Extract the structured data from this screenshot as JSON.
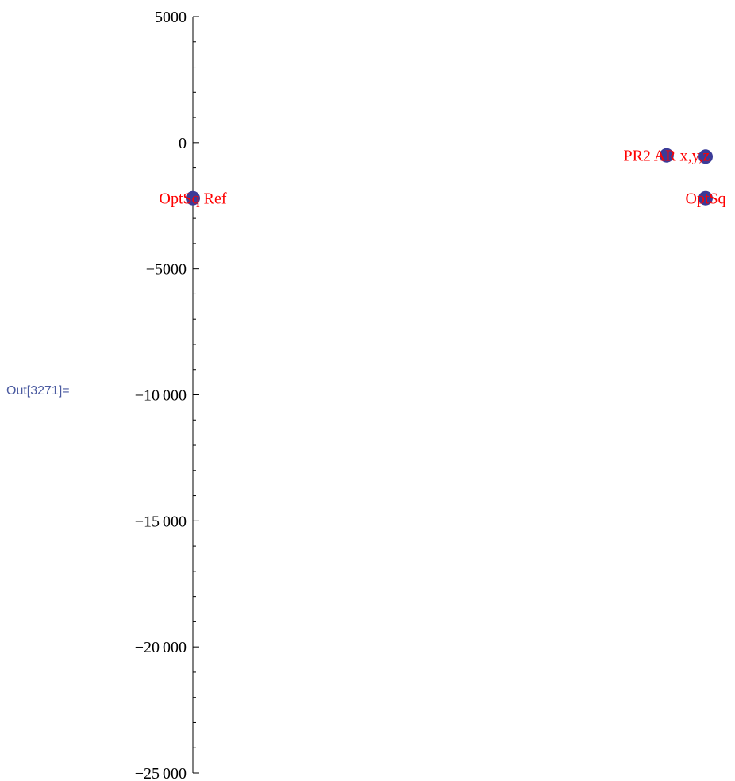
{
  "cell_label": "Out[3271]=",
  "chart_data": {
    "type": "scatter",
    "title": "",
    "xlabel": "",
    "ylabel": "",
    "ylim": [
      -25000,
      5000
    ],
    "yticks": [
      {
        "value": 5000,
        "label": "5000"
      },
      {
        "value": 0,
        "label": "0"
      },
      {
        "value": -5000,
        "label": "−5000"
      },
      {
        "value": -10000,
        "label": "−10 000"
      },
      {
        "value": -15000,
        "label": "−15 000"
      },
      {
        "value": -20000,
        "label": "−20 000"
      },
      {
        "value": -25000,
        "label": "−25 000"
      }
    ],
    "minor_step": 1000,
    "grid": false,
    "points": [
      {
        "x": 0,
        "y": -2200,
        "label": "OptSq Ref"
      },
      {
        "x": 935,
        "y": -500,
        "label": "PR2 AR x,y,z"
      },
      {
        "x": 1012,
        "y": -550,
        "label": ""
      },
      {
        "x": 1012,
        "y": -2200,
        "label": "OptSq"
      }
    ],
    "colors": {
      "point_fill": "#3b3b98",
      "label": "#ff0000",
      "axis": "#000000"
    }
  }
}
